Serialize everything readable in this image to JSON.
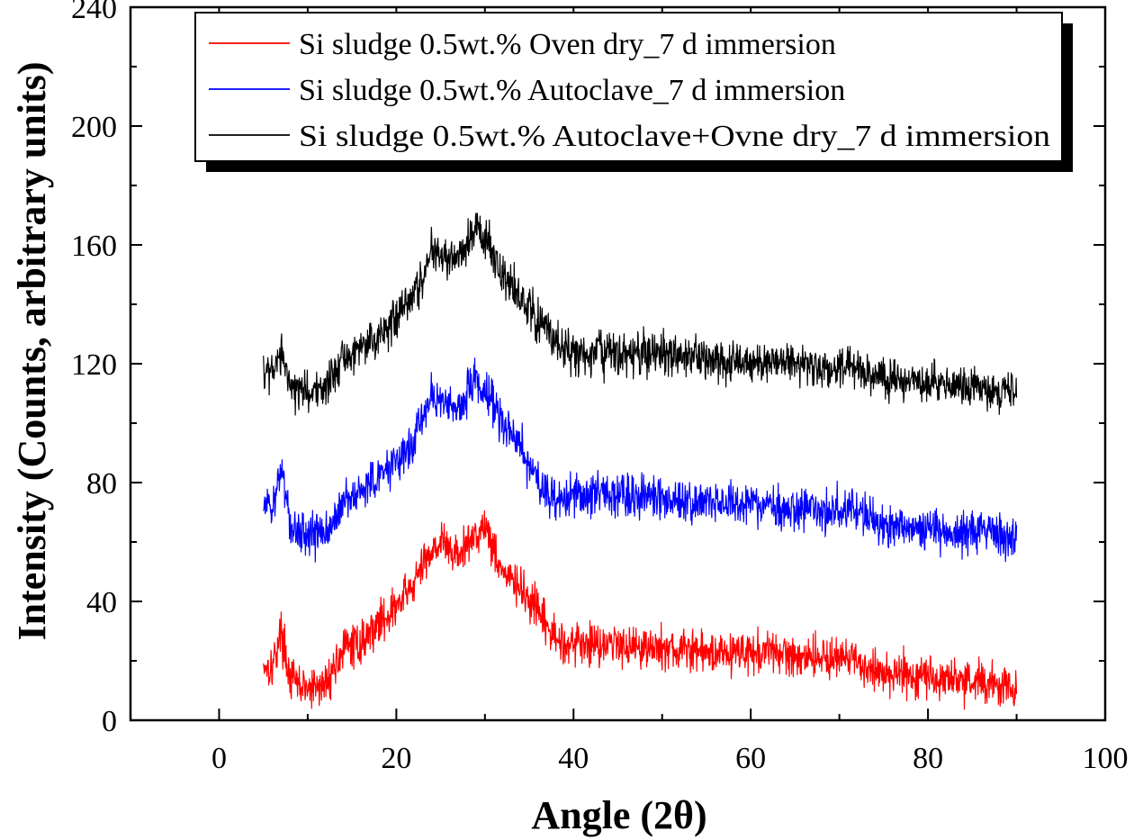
{
  "chart_data": {
    "type": "line",
    "xlabel": "Angle (2θ)",
    "ylabel": "Intensity (Counts, arbitrary units)",
    "xlim": [
      -10,
      100
    ],
    "ylim": [
      0,
      240
    ],
    "x_ticks": [
      0,
      20,
      40,
      60,
      80,
      100
    ],
    "y_ticks": [
      0,
      40,
      80,
      120,
      160,
      200,
      240
    ],
    "grid": false,
    "legend_position": "top-right",
    "x_range": [
      5,
      90
    ],
    "series": [
      {
        "name": "Si sludge 0.5wt.% Oven dry_7 d immersion",
        "color": "#ff0000",
        "noise_amplitude": 5,
        "points": [
          [
            5,
            19
          ],
          [
            6,
            18
          ],
          [
            7,
            30
          ],
          [
            8,
            14
          ],
          [
            10,
            10
          ],
          [
            12,
            12
          ],
          [
            14,
            24
          ],
          [
            16,
            26
          ],
          [
            18,
            33
          ],
          [
            20,
            38
          ],
          [
            22,
            46
          ],
          [
            24,
            58
          ],
          [
            25,
            60
          ],
          [
            27,
            55
          ],
          [
            29,
            63
          ],
          [
            30,
            66
          ],
          [
            32,
            50
          ],
          [
            34,
            44
          ],
          [
            36,
            36
          ],
          [
            38,
            27
          ],
          [
            40,
            26
          ],
          [
            45,
            26
          ],
          [
            50,
            24
          ],
          [
            55,
            23
          ],
          [
            60,
            23
          ],
          [
            65,
            22
          ],
          [
            70,
            21
          ],
          [
            72,
            19
          ],
          [
            75,
            16
          ],
          [
            80,
            15
          ],
          [
            85,
            13
          ],
          [
            90,
            11
          ]
        ]
      },
      {
        "name": "Si sludge 0.5wt.% Autoclave_7 d immersion",
        "color": "#0000ff",
        "noise_amplitude": 5,
        "points": [
          [
            5,
            72
          ],
          [
            6,
            70
          ],
          [
            7,
            86
          ],
          [
            8,
            65
          ],
          [
            10,
            62
          ],
          [
            12,
            63
          ],
          [
            14,
            74
          ],
          [
            16,
            76
          ],
          [
            18,
            82
          ],
          [
            20,
            86
          ],
          [
            22,
            95
          ],
          [
            24,
            110
          ],
          [
            25,
            107
          ],
          [
            27,
            105
          ],
          [
            29,
            115
          ],
          [
            30,
            110
          ],
          [
            32,
            100
          ],
          [
            34,
            92
          ],
          [
            36,
            80
          ],
          [
            38,
            75
          ],
          [
            40,
            75
          ],
          [
            45,
            76
          ],
          [
            50,
            75
          ],
          [
            55,
            73
          ],
          [
            60,
            73
          ],
          [
            65,
            71
          ],
          [
            70,
            71
          ],
          [
            72,
            70
          ],
          [
            75,
            65
          ],
          [
            80,
            64
          ],
          [
            85,
            63
          ],
          [
            90,
            61
          ]
        ]
      },
      {
        "name": "Si sludge 0.5wt.% Autoclave+Ovne dry_7 d immersion",
        "color": "#000000",
        "noise_amplitude": 5,
        "points": [
          [
            5,
            119
          ],
          [
            6,
            116
          ],
          [
            7,
            123
          ],
          [
            8,
            113
          ],
          [
            10,
            110
          ],
          [
            12,
            112
          ],
          [
            14,
            122
          ],
          [
            16,
            124
          ],
          [
            18,
            130
          ],
          [
            20,
            135
          ],
          [
            22,
            143
          ],
          [
            24,
            158
          ],
          [
            25,
            155
          ],
          [
            27,
            156
          ],
          [
            29,
            167
          ],
          [
            30,
            162
          ],
          [
            32,
            150
          ],
          [
            34,
            143
          ],
          [
            36,
            135
          ],
          [
            38,
            128
          ],
          [
            40,
            124
          ],
          [
            45,
            123
          ],
          [
            50,
            123
          ],
          [
            55,
            122
          ],
          [
            60,
            121
          ],
          [
            65,
            120
          ],
          [
            70,
            119
          ],
          [
            72,
            118
          ],
          [
            75,
            115
          ],
          [
            80,
            114
          ],
          [
            85,
            112
          ],
          [
            90,
            111
          ]
        ]
      }
    ]
  }
}
